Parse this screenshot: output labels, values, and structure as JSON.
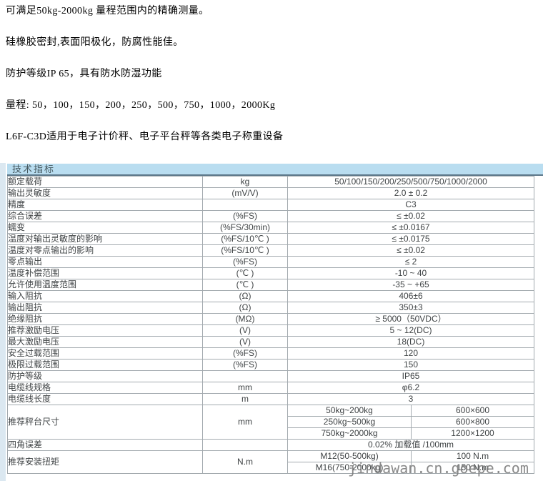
{
  "page": {
    "intro_lines": [
      "可满足50kg-2000kg 量程范围内的精确测量。",
      "硅橡胶密封,表面阳极化，防腐性能佳。",
      "防护等级IP 65，具有防水防湿功能",
      "量程: 50，100，150，200，250，500，750，1000，2000Kg",
      "L6F-C3D适用于电子计价秤、电子平台秤等各类电子称重设备"
    ],
    "watermark": "jindawan.cn.goepe.com"
  },
  "table": {
    "title": "技术指标",
    "rows": [
      {
        "label": "额定载荷",
        "unit": "kg",
        "value": "50/100/150/200/250/500/750/1000/2000"
      },
      {
        "label": "输出灵敏度",
        "unit": "(mV/V)",
        "value": "2.0 ± 0.2"
      },
      {
        "label": "精度",
        "unit": "",
        "value": "C3"
      },
      {
        "label": "综合误差",
        "unit": "(%FS)",
        "value": "≤ ±0.02"
      },
      {
        "label": "蠕变",
        "unit": "(%FS/30min)",
        "value": "≤ ±0.0167"
      },
      {
        "label": "温度对输出灵敏度的影响",
        "unit": "(%FS/10℃ )",
        "value": "≤ ±0.0175"
      },
      {
        "label": "温度对零点输出的影响",
        "unit": "(%FS/10℃ )",
        "value": "≤ ±0.02"
      },
      {
        "label": "零点输出",
        "unit": "(%FS)",
        "value": "≤ 2"
      },
      {
        "label": "温度补偿范围",
        "unit": "(℃ )",
        "value": "-10 ~ 40"
      },
      {
        "label": "允许使用温度范围",
        "unit": "(℃ )",
        "value": "-35 ~ +65"
      },
      {
        "label": "输入阻抗",
        "unit": "(Ω)",
        "value": "406±6"
      },
      {
        "label": "输出阻抗",
        "unit": "(Ω)",
        "value": "350±3"
      },
      {
        "label": "绝缘阻抗",
        "unit": "(MΩ)",
        "value": "≥ 5000（50VDC）"
      },
      {
        "label": "推荐激励电压",
        "unit": "(V)",
        "value": "5 ~ 12(DC)"
      },
      {
        "label": "最大激励电压",
        "unit": "(V)",
        "value": "18(DC)"
      },
      {
        "label": "安全过载范围",
        "unit": "(%FS)",
        "value": "120"
      },
      {
        "label": "极限过载范围",
        "unit": "(%FS)",
        "value": "150"
      },
      {
        "label": "防护等级",
        "unit": "",
        "value": "IP65"
      },
      {
        "label": "电缆线规格",
        "unit": "mm",
        "value": "φ6.2"
      },
      {
        "label": "电缆线长度",
        "unit": "m",
        "value": "3"
      },
      {
        "label": "推荐秤台尺寸",
        "unit": "mm",
        "subrows": [
          [
            "50kg~200kg",
            "600×600"
          ],
          [
            "250kg~500kg",
            "600×800"
          ],
          [
            "750kg~2000kg",
            "1200×1200"
          ]
        ]
      },
      {
        "label": "四角误差",
        "unit": "",
        "value": "0.02% 加载值 /100mm"
      },
      {
        "label": "推荐安装扭矩",
        "unit": "N.m",
        "subrows": [
          [
            "M12(50-500kg)",
            "100 N.m"
          ],
          [
            "M16(750-2000kg)",
            "150 N.m"
          ]
        ]
      }
    ]
  },
  "colors": {
    "header_band": "#b9ddf0",
    "header_underline": "#5c7789",
    "table_border": "#a3aaaf",
    "table_text": "#3f4345",
    "watermark_text": "#7d7d7d",
    "left_stripe": "#dbe8f1"
  }
}
